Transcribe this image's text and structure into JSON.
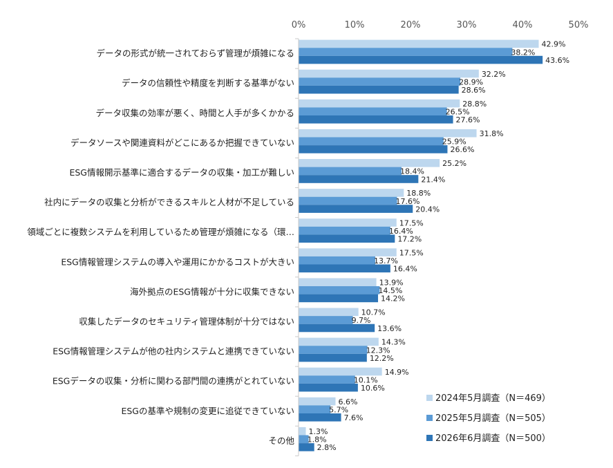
{
  "chart_data": {
    "type": "bar",
    "orientation": "horizontal",
    "xlim": [
      0,
      50
    ],
    "ticks": [
      0,
      10,
      20,
      30,
      40,
      50
    ],
    "tick_suffix": "%",
    "value_suffix": "%",
    "grid": false,
    "legend_position": "bottom-right",
    "categories": [
      "データの形式が統一されておらず管理が煩雑になる",
      "データの信頼性や精度を判断する基準がない",
      "データ収集の効率が悪く、時間と人手が多くかかる",
      "データソースや関連資料がどこにあるか把握できていない",
      "ESG情報開示基準に適合するデータの収集・加工が難しい",
      "社内にデータの収集と分析ができるスキルと人材が不足している",
      "領域ごとに複数システムを利用しているため管理が煩雑になる（環…",
      "ESG情報管理システムの導入や運用にかかるコストが大きい",
      "海外拠点のESG情報が十分に収集できない",
      "収集したデータのセキュリティ管理体制が十分ではない",
      "ESG情報管理システムが他の社内システムと連携できていない",
      "ESGデータの収集・分析に関わる部門間の連携がとれていない",
      "ESGの基準や規制の変更に追従できていない",
      "その他"
    ],
    "series": [
      {
        "name": "2024年5月調査（N＝469）",
        "color": "#bdd7ee",
        "values": [
          42.9,
          32.2,
          28.8,
          31.8,
          25.2,
          18.8,
          17.5,
          17.5,
          13.9,
          10.7,
          14.3,
          14.9,
          6.6,
          1.3
        ]
      },
      {
        "name": "2025年5月調査（N＝505）",
        "color": "#5b9bd5",
        "values": [
          38.2,
          28.9,
          26.5,
          25.9,
          18.4,
          17.6,
          16.4,
          13.7,
          14.5,
          9.7,
          12.3,
          10.1,
          5.7,
          1.8
        ]
      },
      {
        "name": "2026年6月調査（N＝500）",
        "color": "#2e75b6",
        "values": [
          43.6,
          28.6,
          27.6,
          26.6,
          21.4,
          20.4,
          17.2,
          16.4,
          14.2,
          13.6,
          12.2,
          10.6,
          7.6,
          2.8
        ]
      }
    ]
  }
}
